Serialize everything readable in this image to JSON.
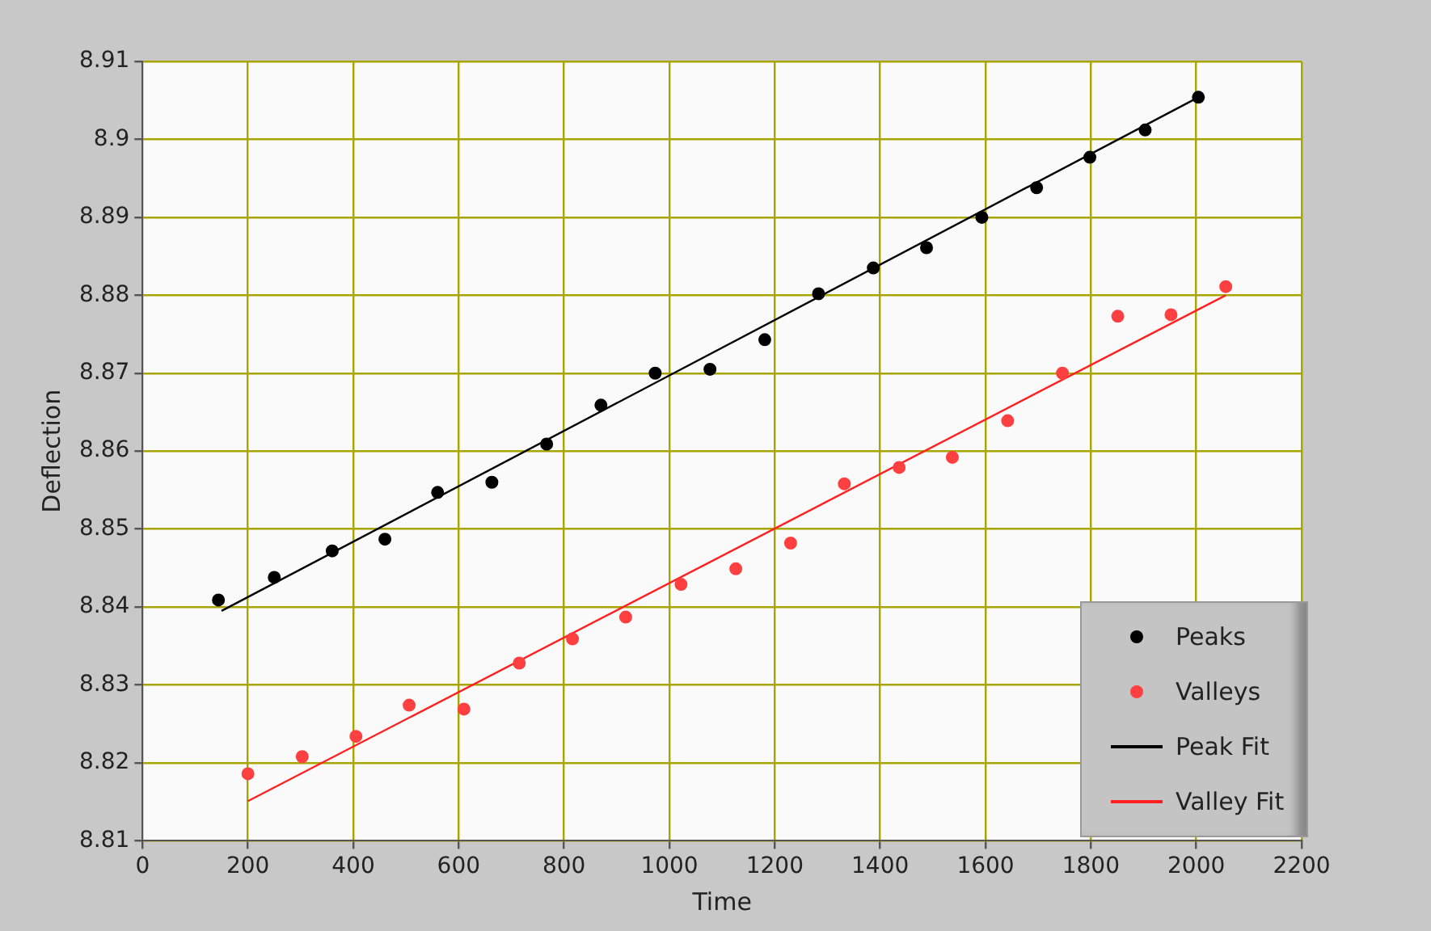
{
  "chart_data": {
    "type": "scatter",
    "xlabel": "Time",
    "ylabel": "Deflection",
    "xlim": [
      0,
      2200
    ],
    "xticks": [
      0,
      200,
      400,
      600,
      800,
      1000,
      1200,
      1400,
      1600,
      1800,
      2000,
      2200
    ],
    "ylim": [
      8.81,
      8.91
    ],
    "yticks": [
      8.81,
      8.82,
      8.83,
      8.84,
      8.85,
      8.86,
      8.87,
      8.88,
      8.89,
      8.9,
      8.91
    ],
    "grid": true,
    "legend": "bottom right",
    "series": [
      {
        "name": "Peaks",
        "marker": "circle",
        "color": "#000000",
        "x": [
          144,
          250,
          360,
          460,
          560,
          663,
          767,
          870,
          973,
          1077,
          1181,
          1283,
          1387,
          1488,
          1593,
          1697,
          1798,
          1903,
          2004
        ],
        "values": [
          8.8409,
          8.8438,
          8.8472,
          8.8487,
          8.8547,
          8.856,
          8.8609,
          8.8659,
          8.87,
          8.8705,
          8.8743,
          8.8802,
          8.8835,
          8.8861,
          8.89,
          8.8938,
          8.8977,
          8.9012,
          8.9054
        ]
      },
      {
        "name": "Valleys",
        "marker": "circle",
        "color": "#ff4040",
        "x": [
          200,
          303,
          405,
          506,
          610,
          715,
          816,
          917,
          1022,
          1126,
          1230,
          1332,
          1436,
          1537,
          1642,
          1746,
          1851,
          1952,
          2056
        ],
        "values": [
          8.8186,
          8.8208,
          8.8234,
          8.8274,
          8.8269,
          8.8328,
          8.8359,
          8.8387,
          8.8429,
          8.8449,
          8.8482,
          8.8558,
          8.8579,
          8.8592,
          8.8639,
          8.87,
          8.8773,
          8.8775,
          8.8811
        ]
      },
      {
        "name": "Peak Fit",
        "type": "line",
        "marker": "none",
        "color": "#000000",
        "x": [
          150,
          2004
        ],
        "values": [
          8.8395,
          8.9054
        ]
      },
      {
        "name": "Valley Fit",
        "type": "line",
        "marker": "none",
        "color": "#ff2020",
        "x": [
          200,
          2056
        ],
        "values": [
          8.8151,
          8.88
        ]
      }
    ]
  }
}
